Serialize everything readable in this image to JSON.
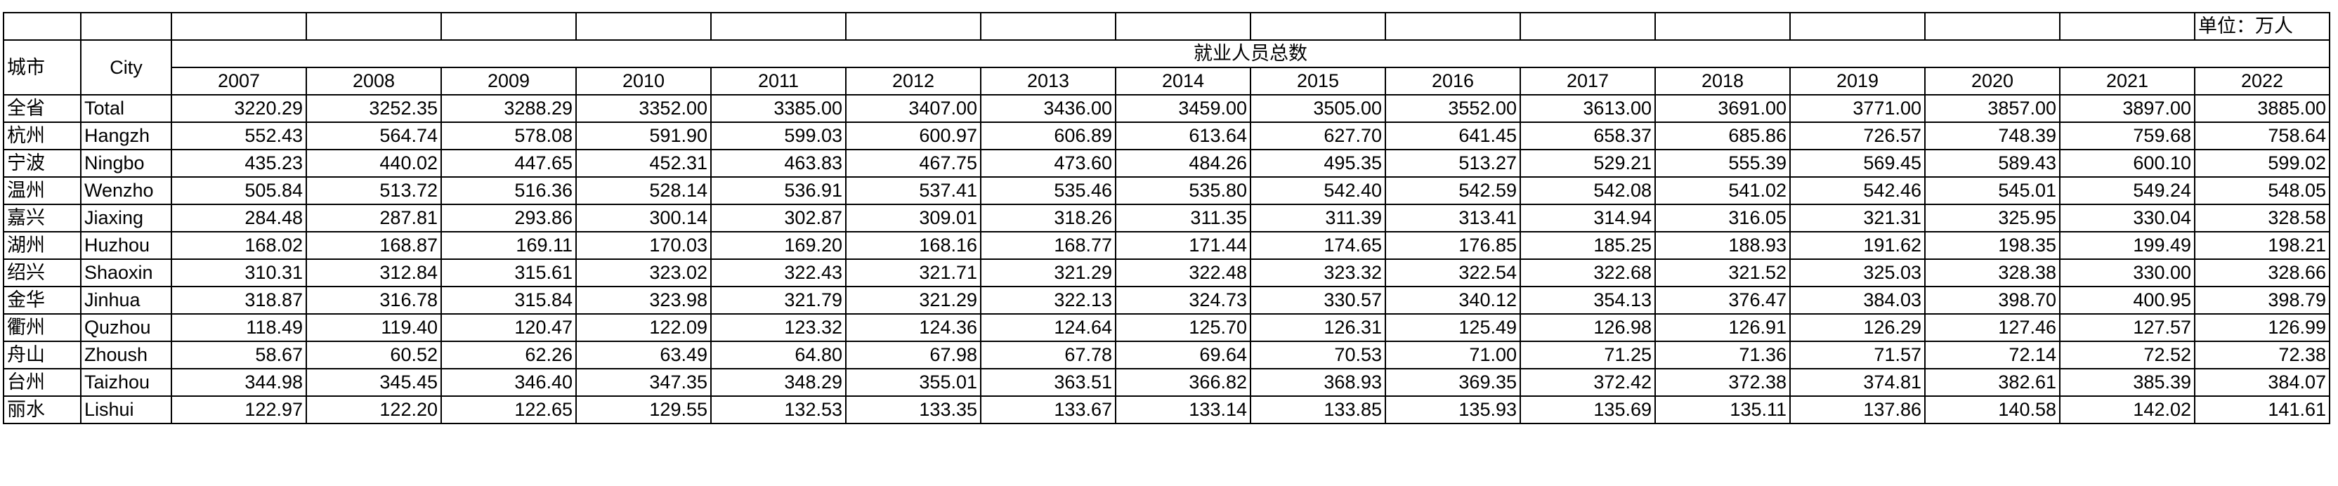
{
  "header": {
    "unit": "单位：万人",
    "city_cn": "城市",
    "city_en": "City",
    "group": "就业人员总数",
    "years": [
      2007,
      2008,
      2009,
      2010,
      2011,
      2012,
      2013,
      2014,
      2015,
      2016,
      2017,
      2018,
      2019,
      2020,
      2021,
      2022
    ]
  },
  "table": {
    "rows": [
      {
        "cn": "全省",
        "en": "Total",
        "values": [
          "3220.29",
          "3252.35",
          "3288.29",
          "3352.00",
          "3385.00",
          "3407.00",
          "3436.00",
          "3459.00",
          "3505.00",
          "3552.00",
          "3613.00",
          "3691.00",
          "3771.00",
          "3857.00",
          "3897.00",
          "3885.00"
        ]
      },
      {
        "cn": "杭州",
        "en": "Hangzh",
        "values": [
          "552.43",
          "564.74",
          "578.08",
          "591.90",
          "599.03",
          "600.97",
          "606.89",
          "613.64",
          "627.70",
          "641.45",
          "658.37",
          "685.86",
          "726.57",
          "748.39",
          "759.68",
          "758.64"
        ]
      },
      {
        "cn": "宁波",
        "en": "Ningbo",
        "values": [
          "435.23",
          "440.02",
          "447.65",
          "452.31",
          "463.83",
          "467.75",
          "473.60",
          "484.26",
          "495.35",
          "513.27",
          "529.21",
          "555.39",
          "569.45",
          "589.43",
          "600.10",
          "599.02"
        ]
      },
      {
        "cn": "温州",
        "en": "Wenzho",
        "values": [
          "505.84",
          "513.72",
          "516.36",
          "528.14",
          "536.91",
          "537.41",
          "535.46",
          "535.80",
          "542.40",
          "542.59",
          "542.08",
          "541.02",
          "542.46",
          "545.01",
          "549.24",
          "548.05"
        ]
      },
      {
        "cn": "嘉兴",
        "en": "Jiaxing",
        "values": [
          "284.48",
          "287.81",
          "293.86",
          "300.14",
          "302.87",
          "309.01",
          "318.26",
          "311.35",
          "311.39",
          "313.41",
          "314.94",
          "316.05",
          "321.31",
          "325.95",
          "330.04",
          "328.58"
        ]
      },
      {
        "cn": "湖州",
        "en": "Huzhou",
        "values": [
          "168.02",
          "168.87",
          "169.11",
          "170.03",
          "169.20",
          "168.16",
          "168.77",
          "171.44",
          "174.65",
          "176.85",
          "185.25",
          "188.93",
          "191.62",
          "198.35",
          "199.49",
          "198.21"
        ]
      },
      {
        "cn": "绍兴",
        "en": "Shaoxin",
        "values": [
          "310.31",
          "312.84",
          "315.61",
          "323.02",
          "322.43",
          "321.71",
          "321.29",
          "322.48",
          "323.32",
          "322.54",
          "322.68",
          "321.52",
          "325.03",
          "328.38",
          "330.00",
          "328.66"
        ]
      },
      {
        "cn": "金华",
        "en": "Jinhua",
        "values": [
          "318.87",
          "316.78",
          "315.84",
          "323.98",
          "321.79",
          "321.29",
          "322.13",
          "324.73",
          "330.57",
          "340.12",
          "354.13",
          "376.47",
          "384.03",
          "398.70",
          "400.95",
          "398.79"
        ]
      },
      {
        "cn": "衢州",
        "en": "Quzhou",
        "values": [
          "118.49",
          "119.40",
          "120.47",
          "122.09",
          "123.32",
          "124.36",
          "124.64",
          "125.70",
          "126.31",
          "125.49",
          "126.98",
          "126.91",
          "126.29",
          "127.46",
          "127.57",
          "126.99"
        ]
      },
      {
        "cn": "舟山",
        "en": "Zhoush",
        "values": [
          "58.67",
          "60.52",
          "62.26",
          "63.49",
          "64.80",
          "67.98",
          "67.78",
          "69.64",
          "70.53",
          "71.00",
          "71.25",
          "71.36",
          "71.57",
          "72.14",
          "72.52",
          "72.38"
        ]
      },
      {
        "cn": "台州",
        "en": "Taizhou",
        "values": [
          "344.98",
          "345.45",
          "346.40",
          "347.35",
          "348.29",
          "355.01",
          "363.51",
          "366.82",
          "368.93",
          "369.35",
          "372.42",
          "372.38",
          "374.81",
          "382.61",
          "385.39",
          "384.07"
        ]
      },
      {
        "cn": "丽水",
        "en": "Lishui",
        "values": [
          "122.97",
          "122.20",
          "122.65",
          "129.55",
          "132.53",
          "133.35",
          "133.67",
          "133.14",
          "133.85",
          "135.93",
          "135.69",
          "135.11",
          "137.86",
          "140.58",
          "142.02",
          "141.61"
        ]
      }
    ]
  }
}
